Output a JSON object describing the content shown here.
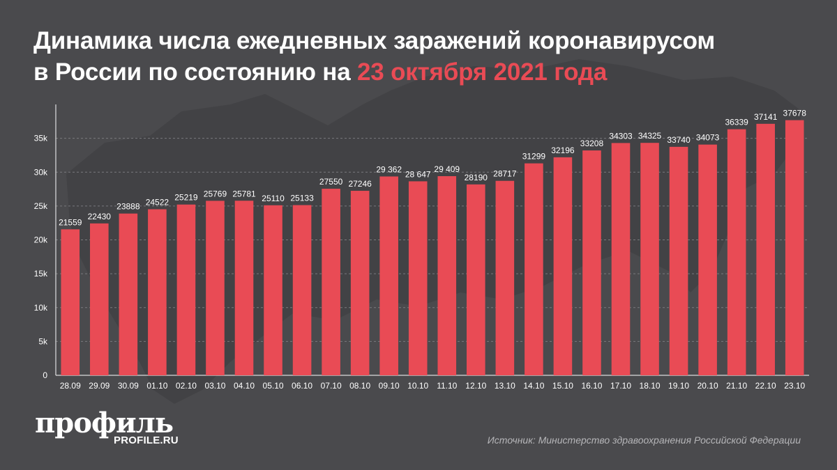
{
  "title": {
    "line1": "Динамика числа ежедневных заражений коронавирусом",
    "line2_prefix": "в России по состоянию на ",
    "line2_highlight": "23 октября 2021 года"
  },
  "colors": {
    "background": "#4a4a4d",
    "bar": "#e94b55",
    "accent": "#e94b55",
    "text": "#ffffff",
    "muted": "#b5b5b8"
  },
  "chart_data": {
    "type": "bar",
    "title": "Динамика числа ежедневных заражений коронавирусом в России по состоянию на 23 октября 2021 года",
    "xlabel": "",
    "ylabel": "",
    "ylim": [
      0,
      40000
    ],
    "yticks": [
      {
        "value": 0,
        "label": "0"
      },
      {
        "value": 5000,
        "label": "5k"
      },
      {
        "value": 10000,
        "label": "10k"
      },
      {
        "value": 15000,
        "label": "15k"
      },
      {
        "value": 20000,
        "label": "20k"
      },
      {
        "value": 25000,
        "label": "25k"
      },
      {
        "value": 30000,
        "label": "30k"
      },
      {
        "value": 35000,
        "label": "35k"
      }
    ],
    "grid": true,
    "categories": [
      "28.09",
      "29.09",
      "30.09",
      "01.10",
      "02.10",
      "03.10",
      "04.10",
      "05.10",
      "06.10",
      "07.10",
      "08.10",
      "09.10",
      "10.10",
      "11.10",
      "12.10",
      "13.10",
      "14.10",
      "15.10",
      "16.10",
      "17.10",
      "18.10",
      "19.10",
      "20.10",
      "21.10",
      "22.10",
      "23.10"
    ],
    "values": [
      21559,
      22430,
      23888,
      24522,
      25219,
      25769,
      25781,
      25110,
      25133,
      27550,
      27246,
      29362,
      28647,
      29409,
      28190,
      28717,
      31299,
      32196,
      33208,
      34303,
      34325,
      33740,
      34073,
      36339,
      37141,
      37678
    ],
    "value_labels": [
      "21559",
      "22430",
      "23888",
      "24522",
      "25219",
      "25769",
      "25781",
      "25110",
      "25133",
      "27550",
      "27246",
      "29 362",
      "28 647",
      "29 409",
      "28190",
      "28717",
      "31299",
      "32196",
      "33208",
      "34303",
      "34325",
      "33740",
      "34073",
      "36339",
      "37141",
      "37678"
    ]
  },
  "logo": {
    "main": "профиль",
    "sub": "PROFILE.RU"
  },
  "source": "Источник: Министерство здравоохранения Российской Федерации"
}
